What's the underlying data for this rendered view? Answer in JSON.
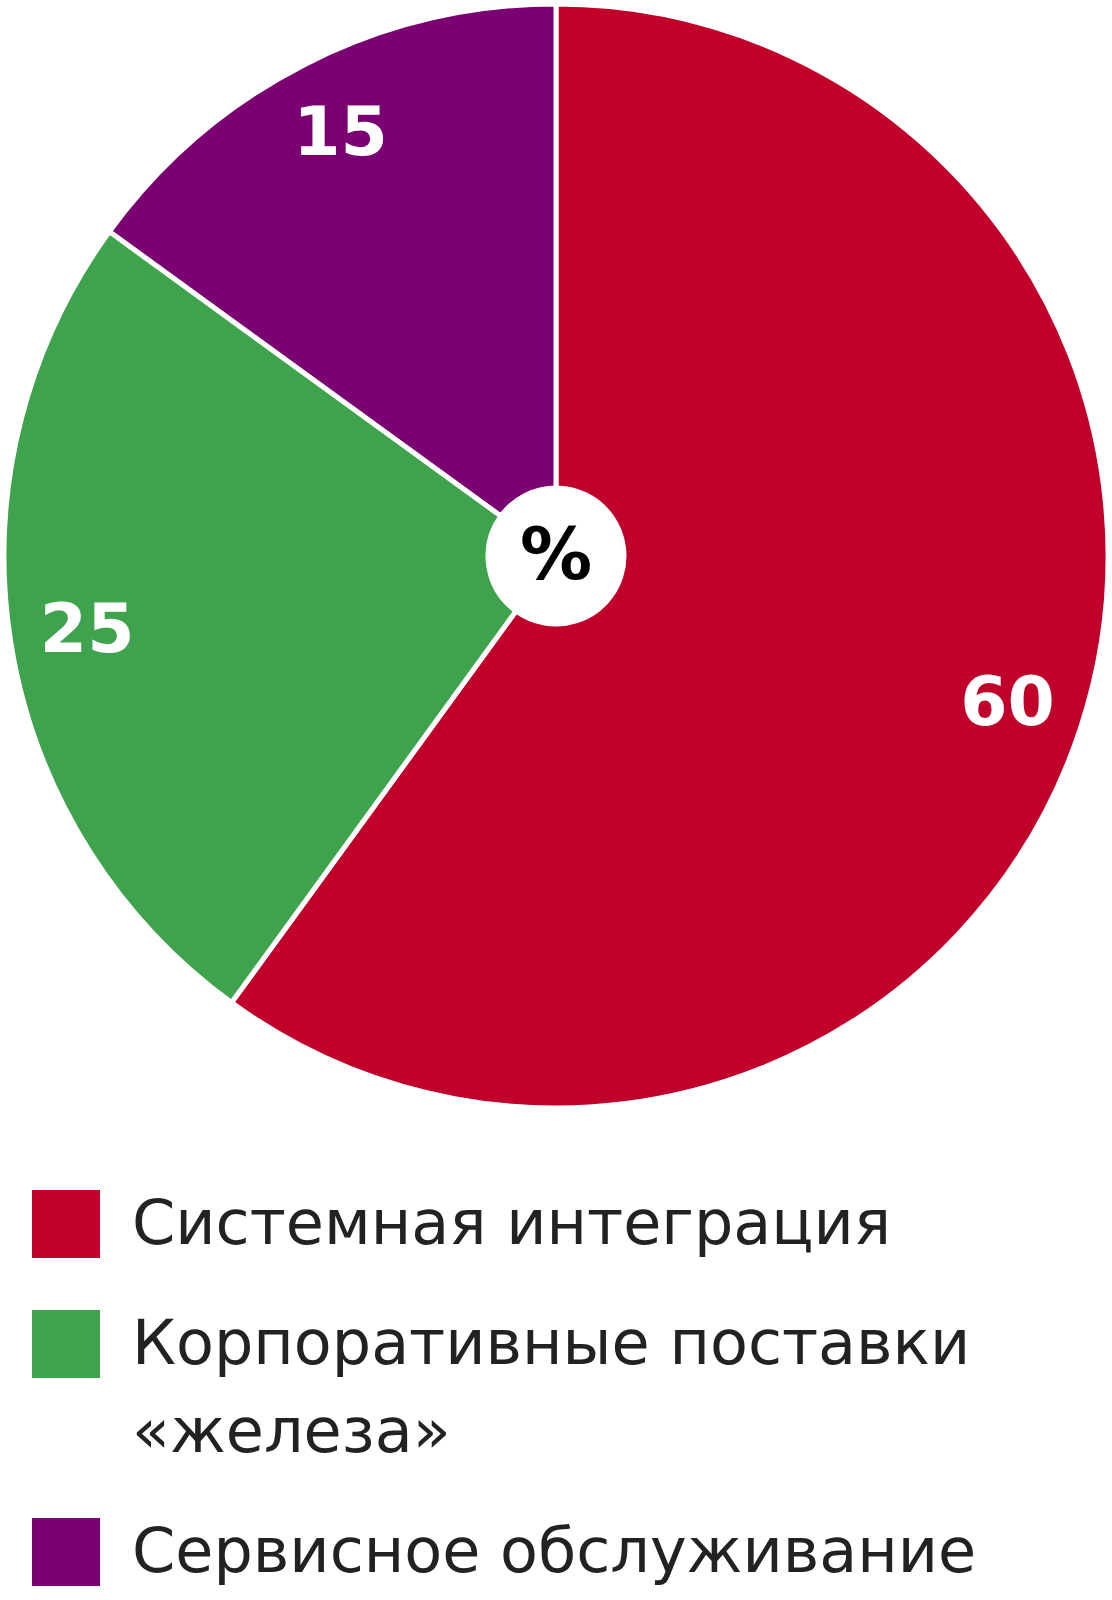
{
  "chart_data": {
    "type": "donut",
    "categories": [
      "Системная интеграция",
      "Корпоративные поставки «железа»",
      "Сервисное обслуживание"
    ],
    "values": [
      60,
      25,
      15
    ],
    "colors": [
      "#c0002a",
      "#3fa34d",
      "#7b0072"
    ],
    "data_labels": true,
    "legend": "bottom",
    "annotations": [
      "%"
    ]
  }
}
